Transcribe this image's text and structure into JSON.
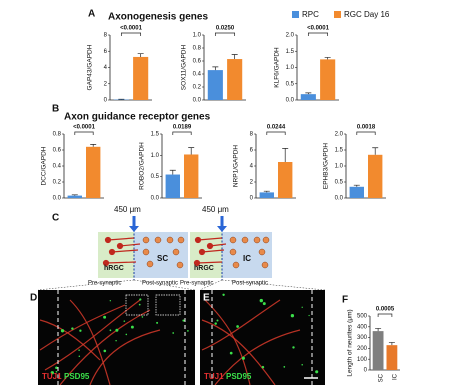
{
  "panels": [
    "A",
    "B",
    "C",
    "D",
    "E",
    "F"
  ],
  "sections": {
    "A": "Axonogenesis genes",
    "B": "Axon guidance receptor genes"
  },
  "legend": [
    {
      "name": "RPC",
      "color": "#4a8fdc"
    },
    {
      "name": "RGC Day 16",
      "color": "#f28a2e"
    }
  ],
  "chart_data": [
    {
      "type": "bar",
      "ylabel": "GAP43/GAPDH",
      "ylim": [
        0,
        8
      ],
      "yticks": [
        0,
        2,
        4,
        6,
        8
      ],
      "values": [
        0.05,
        5.3
      ],
      "errors": [
        0.05,
        0.4
      ],
      "p_value": "<0.0001"
    },
    {
      "type": "bar",
      "ylabel": "SOX11/GAPDH",
      "ylim": [
        0,
        1
      ],
      "yticks": [
        {
          "value": 0,
          "label": "0.0"
        },
        0.2,
        0.4,
        0.6,
        0.8,
        {
          "value": 1,
          "label": "1.0"
        }
      ],
      "values": [
        0.46,
        0.63
      ],
      "errors": [
        0.05,
        0.07
      ],
      "p_value": "0.0250"
    },
    {
      "type": "bar",
      "ylabel": "KLF6/GAPDH",
      "ylim": [
        0,
        2
      ],
      "yticks": [
        {
          "value": 0,
          "label": "0.0"
        },
        0.5,
        {
          "value": 1,
          "label": "1.0"
        },
        1.5,
        {
          "value": 2,
          "label": "2.0"
        }
      ],
      "values": [
        0.18,
        1.25
      ],
      "errors": [
        0.04,
        0.06
      ],
      "p_value": "<0.0001"
    },
    {
      "type": "bar",
      "ylabel": "DCC/GAPDH",
      "ylim": [
        0,
        0.8
      ],
      "yticks": [
        {
          "value": 0,
          "label": "0.0"
        },
        0.2,
        0.4,
        0.6,
        0.8
      ],
      "values": [
        0.03,
        0.64
      ],
      "errors": [
        0.01,
        0.03
      ],
      "p_value": "<0.0001"
    },
    {
      "type": "bar",
      "ylabel": "ROBO2/GAPDH",
      "ylim": [
        0,
        1.5
      ],
      "yticks": [
        {
          "value": 0,
          "label": "0.0"
        },
        0.5,
        {
          "value": 1,
          "label": "1.0"
        },
        1.5
      ],
      "values": [
        0.55,
        1.02
      ],
      "errors": [
        0.1,
        0.16
      ],
      "p_value": "0.0189"
    },
    {
      "type": "bar",
      "ylabel": "NRP1/GAPDH",
      "ylim": [
        0,
        8
      ],
      "yticks": [
        0,
        2,
        4,
        6,
        8
      ],
      "values": [
        0.7,
        4.5
      ],
      "errors": [
        0.15,
        1.7
      ],
      "p_value": "0.0244"
    },
    {
      "type": "bar",
      "ylabel": "EPHB3/GAPDH",
      "ylim": [
        0,
        2
      ],
      "yticks": [
        {
          "value": 0,
          "label": "0.0"
        },
        0.5,
        {
          "value": 1,
          "label": "1.0"
        },
        1.5,
        {
          "value": 2,
          "label": "2.0"
        }
      ],
      "values": [
        0.35,
        1.35
      ],
      "errors": [
        0.05,
        0.22
      ],
      "p_value": "0.0018"
    },
    {
      "type": "bar",
      "ylabel": "Length of neurites (μm)",
      "ylim": [
        0,
        500
      ],
      "yticks": [
        0,
        100,
        200,
        300,
        400,
        500
      ],
      "categories": [
        "SC",
        "IC"
      ],
      "colors": [
        "#7f7f7f",
        "#e8792a"
      ],
      "values": [
        360,
        230
      ],
      "errors": [
        25,
        25
      ],
      "p_value": "0.0005"
    }
  ],
  "diagram": {
    "left": {
      "distance": "450 μm",
      "cell": "hRGC",
      "target": "SC",
      "pre": "Pre-synaptic",
      "post": "Post-synaptic"
    },
    "right": {
      "distance": "450 μm",
      "cell": "hRGC",
      "target": "IC",
      "pre": "Pre-synaptic",
      "post": "Post-synaptic"
    }
  },
  "images": {
    "D": {
      "stains": [
        "TUJ1",
        "PSD95"
      ]
    },
    "E": {
      "stains": [
        "TUJ1",
        "PSD95"
      ]
    }
  }
}
